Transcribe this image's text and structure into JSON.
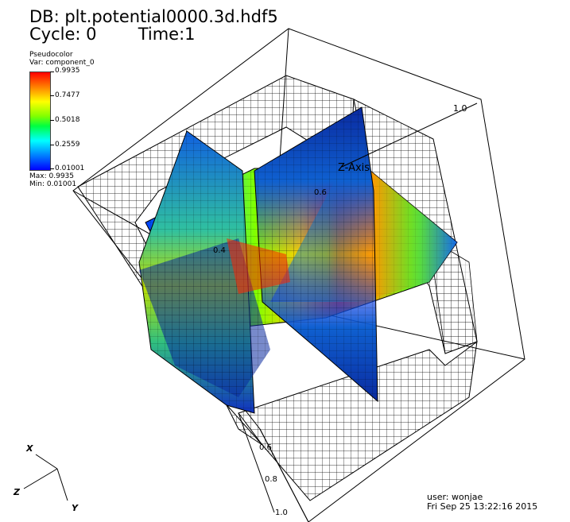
{
  "header": {
    "db": "DB: plt.potential0000.3d.hdf5",
    "cycle": "Cycle: 0",
    "time": "Time:1"
  },
  "legend": {
    "plot_type": "Pseudocolor",
    "var": "Var: component_0",
    "ticks": [
      "0.9935",
      "0.7477",
      "0.5018",
      "0.2559",
      "0.01001"
    ],
    "max": "Max: 0.9935",
    "min": "Min: 0.01001",
    "colormap": [
      "#0000ff",
      "#00ffff",
      "#00ff00",
      "#ffff00",
      "#ff0000"
    ]
  },
  "axes": {
    "z_title": "Z-Axis",
    "z_tick_top": "1.0",
    "z_tick_mid": "0.6",
    "x_tick": "0.4",
    "bottom_ticks": [
      "0.6",
      "0.8",
      "1.0"
    ]
  },
  "triad": {
    "x": "X",
    "y": "Y",
    "z": "Z"
  },
  "footer": {
    "user": "user: wonjae",
    "date": "Fri Sep 25 13:22:16 2015"
  }
}
